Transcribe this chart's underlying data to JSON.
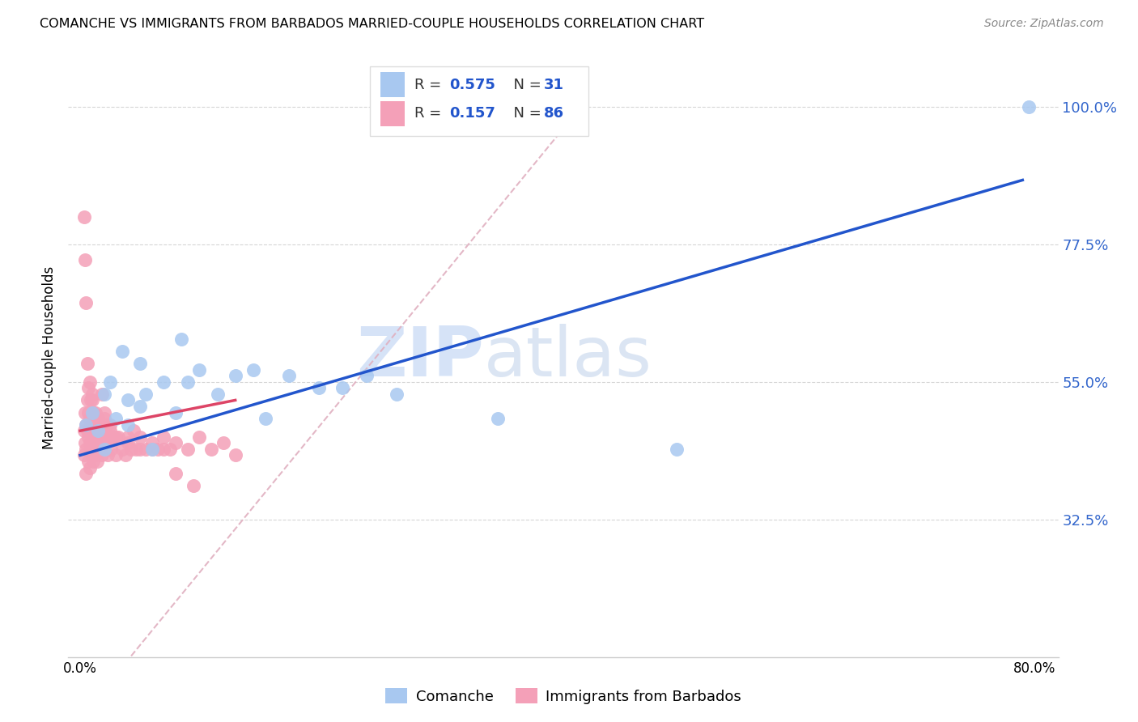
{
  "title": "COMANCHE VS IMMIGRANTS FROM BARBADOS MARRIED-COUPLE HOUSEHOLDS CORRELATION CHART",
  "source": "Source: ZipAtlas.com",
  "ylabel": "Married-couple Households",
  "ytick_positions": [
    0.325,
    0.55,
    0.775,
    1.0
  ],
  "ytick_labels": [
    "32.5%",
    "55.0%",
    "77.5%",
    "100.0%"
  ],
  "xtick_positions": [
    0.0,
    0.1,
    0.2,
    0.3,
    0.4,
    0.5,
    0.6,
    0.7,
    0.8
  ],
  "xtick_labels": [
    "0.0%",
    "",
    "",
    "",
    "",
    "",
    "",
    "",
    "80.0%"
  ],
  "xlim": [
    -0.01,
    0.82
  ],
  "ylim": [
    0.1,
    1.08
  ],
  "color_comanche": "#A8C8F0",
  "color_barbados": "#F4A0B8",
  "color_line_comanche": "#2255CC",
  "color_line_barbados": "#DD4466",
  "color_diag": "#E0B0C0",
  "watermark_zip": "ZIP",
  "watermark_atlas": "atlas",
  "legend_r1": "R = 0.575",
  "legend_n1": "N =  31",
  "legend_r2": "R = 0.157",
  "legend_n2": "N = 86",
  "comanche_x": [
    0.005,
    0.01,
    0.015,
    0.02,
    0.02,
    0.025,
    0.03,
    0.035,
    0.04,
    0.04,
    0.05,
    0.05,
    0.055,
    0.06,
    0.07,
    0.08,
    0.085,
    0.09,
    0.1,
    0.115,
    0.13,
    0.145,
    0.155,
    0.175,
    0.2,
    0.22,
    0.24,
    0.265,
    0.35,
    0.5,
    0.795
  ],
  "comanche_y": [
    0.48,
    0.5,
    0.47,
    0.53,
    0.44,
    0.55,
    0.49,
    0.6,
    0.52,
    0.48,
    0.51,
    0.58,
    0.53,
    0.44,
    0.55,
    0.5,
    0.62,
    0.55,
    0.57,
    0.53,
    0.56,
    0.57,
    0.49,
    0.56,
    0.54,
    0.54,
    0.56,
    0.53,
    0.49,
    0.44,
    1.0
  ],
  "barbados_x": [
    0.003,
    0.003,
    0.004,
    0.004,
    0.005,
    0.005,
    0.005,
    0.006,
    0.006,
    0.007,
    0.007,
    0.007,
    0.008,
    0.008,
    0.008,
    0.009,
    0.009,
    0.01,
    0.01,
    0.01,
    0.011,
    0.011,
    0.011,
    0.012,
    0.012,
    0.013,
    0.013,
    0.014,
    0.014,
    0.015,
    0.015,
    0.016,
    0.017,
    0.018,
    0.018,
    0.019,
    0.02,
    0.02,
    0.022,
    0.023,
    0.025,
    0.026,
    0.028,
    0.03,
    0.032,
    0.035,
    0.038,
    0.04,
    0.043,
    0.045,
    0.047,
    0.05,
    0.055,
    0.06,
    0.065,
    0.07,
    0.075,
    0.08,
    0.09,
    0.1,
    0.11,
    0.12,
    0.13,
    0.003,
    0.004,
    0.005,
    0.006,
    0.007,
    0.008,
    0.009,
    0.01,
    0.011,
    0.012,
    0.013,
    0.015,
    0.018,
    0.02,
    0.022,
    0.025,
    0.03,
    0.04,
    0.05,
    0.06,
    0.07,
    0.08,
    0.095
  ],
  "barbados_y": [
    0.47,
    0.43,
    0.5,
    0.45,
    0.48,
    0.44,
    0.4,
    0.52,
    0.47,
    0.5,
    0.46,
    0.42,
    0.49,
    0.45,
    0.41,
    0.48,
    0.44,
    0.52,
    0.47,
    0.43,
    0.5,
    0.46,
    0.42,
    0.49,
    0.45,
    0.48,
    0.43,
    0.46,
    0.42,
    0.49,
    0.45,
    0.48,
    0.44,
    0.47,
    0.43,
    0.46,
    0.49,
    0.45,
    0.46,
    0.43,
    0.47,
    0.44,
    0.46,
    0.43,
    0.46,
    0.44,
    0.43,
    0.46,
    0.44,
    0.47,
    0.44,
    0.46,
    0.44,
    0.45,
    0.44,
    0.46,
    0.44,
    0.45,
    0.44,
    0.46,
    0.44,
    0.45,
    0.43,
    0.82,
    0.75,
    0.68,
    0.58,
    0.54,
    0.55,
    0.52,
    0.53,
    0.5,
    0.48,
    0.5,
    0.48,
    0.53,
    0.5,
    0.48,
    0.48,
    0.46,
    0.45,
    0.44,
    0.44,
    0.44,
    0.4,
    0.38
  ]
}
